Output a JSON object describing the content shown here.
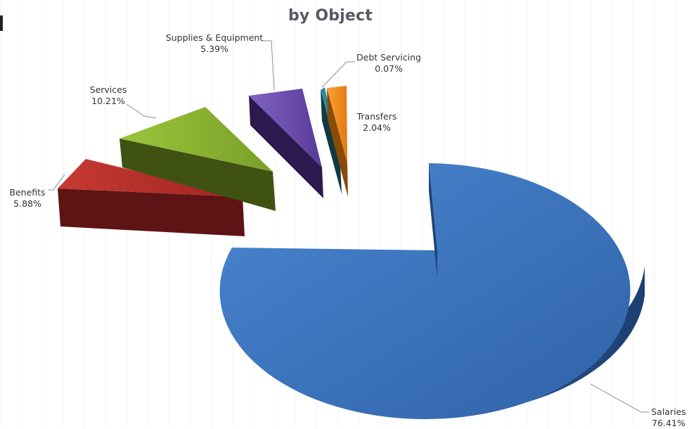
{
  "chart_data": {
    "type": "pie",
    "title": "by Object",
    "exploded_3d": true,
    "slices": [
      {
        "label": "Salaries",
        "value": 76.41,
        "display": "76.41%",
        "color": "#3a6fb5"
      },
      {
        "label": "Benefits",
        "value": 5.88,
        "display": "5.88%",
        "color": "#b02a2a"
      },
      {
        "label": "Services",
        "value": 10.21,
        "display": "10.21%",
        "color": "#86ac2e"
      },
      {
        "label": "Supplies & Equipment",
        "value": 5.39,
        "display": "5.39%",
        "color": "#6a4aa8"
      },
      {
        "label": "Debt Servicing",
        "value": 0.07,
        "display": "0.07%",
        "color": "#1f6e80"
      },
      {
        "label": "Transfers",
        "value": 2.04,
        "display": "2.04%",
        "color": "#f08a1e"
      }
    ]
  }
}
